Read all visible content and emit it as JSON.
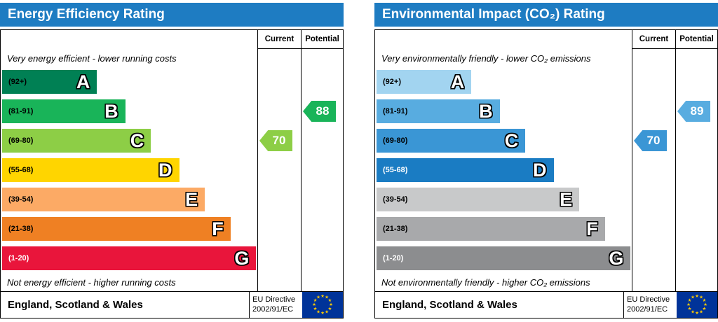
{
  "colors": {
    "header_bg": "#1e7cc2",
    "header_text": "#ffffff",
    "border": "#000000",
    "eu_flag_bg": "#003399",
    "eu_star": "#ffcc00"
  },
  "charts": [
    {
      "title": "Energy Efficiency Rating",
      "current_label": "Current",
      "potential_label": "Potential",
      "top_caption": "Very energy efficient - lower running costs",
      "bottom_caption": "Not energy efficient - higher running costs",
      "footer_region": "England, Scotland & Wales",
      "directive_line1": "EU Directive",
      "directive_line2": "2002/91/EC",
      "bands": [
        {
          "range": "(92+)",
          "letter": "A",
          "color": "#008054",
          "width_pct": 37,
          "range_color": "#000000"
        },
        {
          "range": "(81-91)",
          "letter": "B",
          "color": "#19b459",
          "width_pct": 48,
          "range_color": "#000000"
        },
        {
          "range": "(69-80)",
          "letter": "C",
          "color": "#8dce46",
          "width_pct": 58,
          "range_color": "#000000"
        },
        {
          "range": "(55-68)",
          "letter": "D",
          "color": "#ffd500",
          "width_pct": 69,
          "range_color": "#000000"
        },
        {
          "range": "(39-54)",
          "letter": "E",
          "color": "#fcaa65",
          "width_pct": 79,
          "range_color": "#000000"
        },
        {
          "range": "(21-38)",
          "letter": "F",
          "color": "#ef8023",
          "width_pct": 89,
          "range_color": "#000000"
        },
        {
          "range": "(1-20)",
          "letter": "G",
          "color": "#e9153b",
          "width_pct": 99,
          "range_color": "#ffffff"
        }
      ],
      "current": {
        "value": "70",
        "band_index": 2,
        "color": "#8dce46"
      },
      "potential": {
        "value": "88",
        "band_index": 1,
        "color": "#19b459"
      }
    },
    {
      "title": "Environmental Impact (CO₂) Rating",
      "current_label": "Current",
      "potential_label": "Potential",
      "top_caption": "Very environmentally friendly - lower CO₂ emissions",
      "bottom_caption": "Not environmentally friendly - higher CO₂ emissions",
      "footer_region": "England, Scotland & Wales",
      "directive_line1": "EU Directive",
      "directive_line2": "2002/91/EC",
      "bands": [
        {
          "range": "(92+)",
          "letter": "A",
          "color": "#a2d4f0",
          "width_pct": 37,
          "range_color": "#000000"
        },
        {
          "range": "(81-91)",
          "letter": "B",
          "color": "#58ace0",
          "width_pct": 48,
          "range_color": "#000000"
        },
        {
          "range": "(69-80)",
          "letter": "C",
          "color": "#3a96d5",
          "width_pct": 58,
          "range_color": "#000000"
        },
        {
          "range": "(55-68)",
          "letter": "D",
          "color": "#1a7cc3",
          "width_pct": 69,
          "range_color": "#ffffff"
        },
        {
          "range": "(39-54)",
          "letter": "E",
          "color": "#c8c9ca",
          "width_pct": 79,
          "range_color": "#000000"
        },
        {
          "range": "(21-38)",
          "letter": "F",
          "color": "#a8a9ab",
          "width_pct": 89,
          "range_color": "#000000"
        },
        {
          "range": "(1-20)",
          "letter": "G",
          "color": "#8c8d8f",
          "width_pct": 99,
          "range_color": "#ffffff"
        }
      ],
      "current": {
        "value": "70",
        "band_index": 2,
        "color": "#3a96d5"
      },
      "potential": {
        "value": "89",
        "band_index": 1,
        "color": "#58ace0"
      }
    }
  ],
  "chart_data": [
    {
      "type": "bar",
      "title": "Energy Efficiency Rating",
      "categories": [
        "A",
        "B",
        "C",
        "D",
        "E",
        "F",
        "G"
      ],
      "band_ranges": [
        "92+",
        "81-91",
        "69-80",
        "55-68",
        "39-54",
        "21-38",
        "1-20"
      ],
      "current": 70,
      "current_band": "C",
      "potential": 88,
      "potential_band": "B",
      "top_label": "Very energy efficient - lower running costs",
      "bottom_label": "Not energy efficient - higher running costs"
    },
    {
      "type": "bar",
      "title": "Environmental Impact (CO₂) Rating",
      "categories": [
        "A",
        "B",
        "C",
        "D",
        "E",
        "F",
        "G"
      ],
      "band_ranges": [
        "92+",
        "81-91",
        "69-80",
        "55-68",
        "39-54",
        "21-38",
        "1-20"
      ],
      "current": 70,
      "current_band": "C",
      "potential": 89,
      "potential_band": "B",
      "top_label": "Very environmentally friendly - lower CO₂ emissions",
      "bottom_label": "Not environmentally friendly - higher CO₂ emissions"
    }
  ]
}
